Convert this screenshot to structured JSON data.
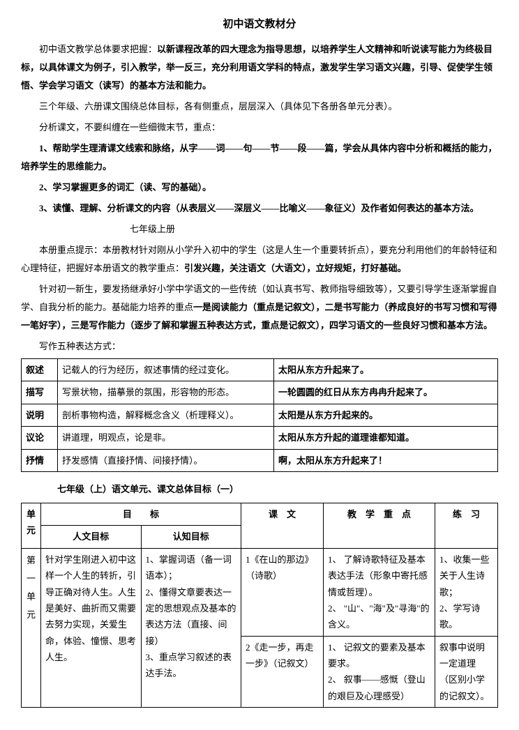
{
  "title": "初中语文教材分",
  "p1a": "初中语文教学总体要求把握：",
  "p1b": "以新课程改革的四大理念为指导思想，以培养学生人文精神和听说读写能力为终极目标，以具体课文为例子，引入教学，举一反三，充分利用语文学科的特点，激发学生学习语文兴趣，引导、促使学生领悟、学会学习语文（读写）的基本方法和能力。",
  "p2": "三个年级、六册课文围绕总体目标，各有侧重点，层层深入（具体见下各册各单元分表）。",
  "p3": "分析课文，不要纠缠在一些细微末节，重点：",
  "p4": "1、帮助学生理清课文线索和脉络，从字——词——句——节——段——篇，学会从具体内容中分析和概括的能力，培养学生的思维能力。",
  "p5": "2、学习掌握更多的词汇（读、写的基础）。",
  "p6": "3、读懂、理解、分析课文的内容（从表层义——深层义——比喻义——象征义）及作者如何表达的基本方法。",
  "sub1": "七年级上册",
  "p7a": "本册重点提示：本册教材针对刚从小学升入初中的学生（这是人生一个重要转折点），要充分利用他们的年龄特征和心理特征，把握好本册语文的教学重点：",
  "p7b": "引发兴趣，关注语文（大语文），立好规矩，打好基础。",
  "p8a": "针对初一新生，要发扬继承好小学中学语文的一些传统（如认真书写、教师指导细致等），又要引导学生逐渐掌握自学、自我分析的能力。基础能力培养的重点",
  "p8b": "一是阅读能力（重点是记叙文），二是书写能力（养成良好的书写习惯和写得一笔好字），三是写作能力（逐步了解和掌握五种表达方式，重点是记叙文），四学习语文的一些良好习惯和基本方法。",
  "p9": "写作五种表达方式：",
  "t1": {
    "rows": [
      [
        "叙述",
        "记载人的行为经历，叙述事情的经过变化。",
        "太阳从东方升起来了。"
      ],
      [
        "描写",
        "写景状物，描摹景的氛围，形容物的形态。",
        "一轮圆圆的红日从东方冉冉升起来了。"
      ],
      [
        "说明",
        "剖析事物构造，解释概念含义（析理释义）。",
        "太阳是从东方升起来的。"
      ],
      [
        "议论",
        "讲道理，明观点，论是非。",
        "太阳从东方升起的道理谁都知道。"
      ],
      [
        "抒情",
        "抒发感情（直接抒情、间接抒情）。",
        "啊，太阳从东方升起来了！"
      ]
    ]
  },
  "sec2title": "七年级（上）语文单元、课文总体目标（一）",
  "t2": {
    "hdr_unit": "单元",
    "hdr_goal": "目　　标",
    "hdr_hum": "人文目标",
    "hdr_cog": "认知目标",
    "hdr_text": "课　文",
    "hdr_focus": "教　学　重　点",
    "hdr_prac": "练　习",
    "unit_label": "第一单元",
    "hum": "针对学生刚进入初中这样一个人生的转折，引导正确对待人生。人生是美好、曲折而又需要去努力实现，关爱生命，体验、憧憬、思考人生。",
    "cog": "1、掌握词语（备一词语本）；\n2、懂得文章要表达一定的思想观点及基本的表达方法（直接、间接）\n3、重点学习叙述的表达手法。",
    "row1_text": "1《在山的那边》（诗歌）",
    "row1_focus": "1、 了解诗歌特征及基本表达手法（形象中寄托感情或哲理）。\n2、 \"山\"、\"海\"及\"寻海\"的含义。",
    "row1_prac": "1、收集一些关于人生诗歌；\n2、学写诗歌。",
    "row2_text": "2《走一步，再走一步》（记叙文）",
    "row2_focus": "1、 记叙文的要素及基本要求。\n2、 叙事——感慨（登山的艰巨及心理感受）",
    "row2_prac": "叙事中说明一定道理（区别小学的记叙文）。"
  }
}
